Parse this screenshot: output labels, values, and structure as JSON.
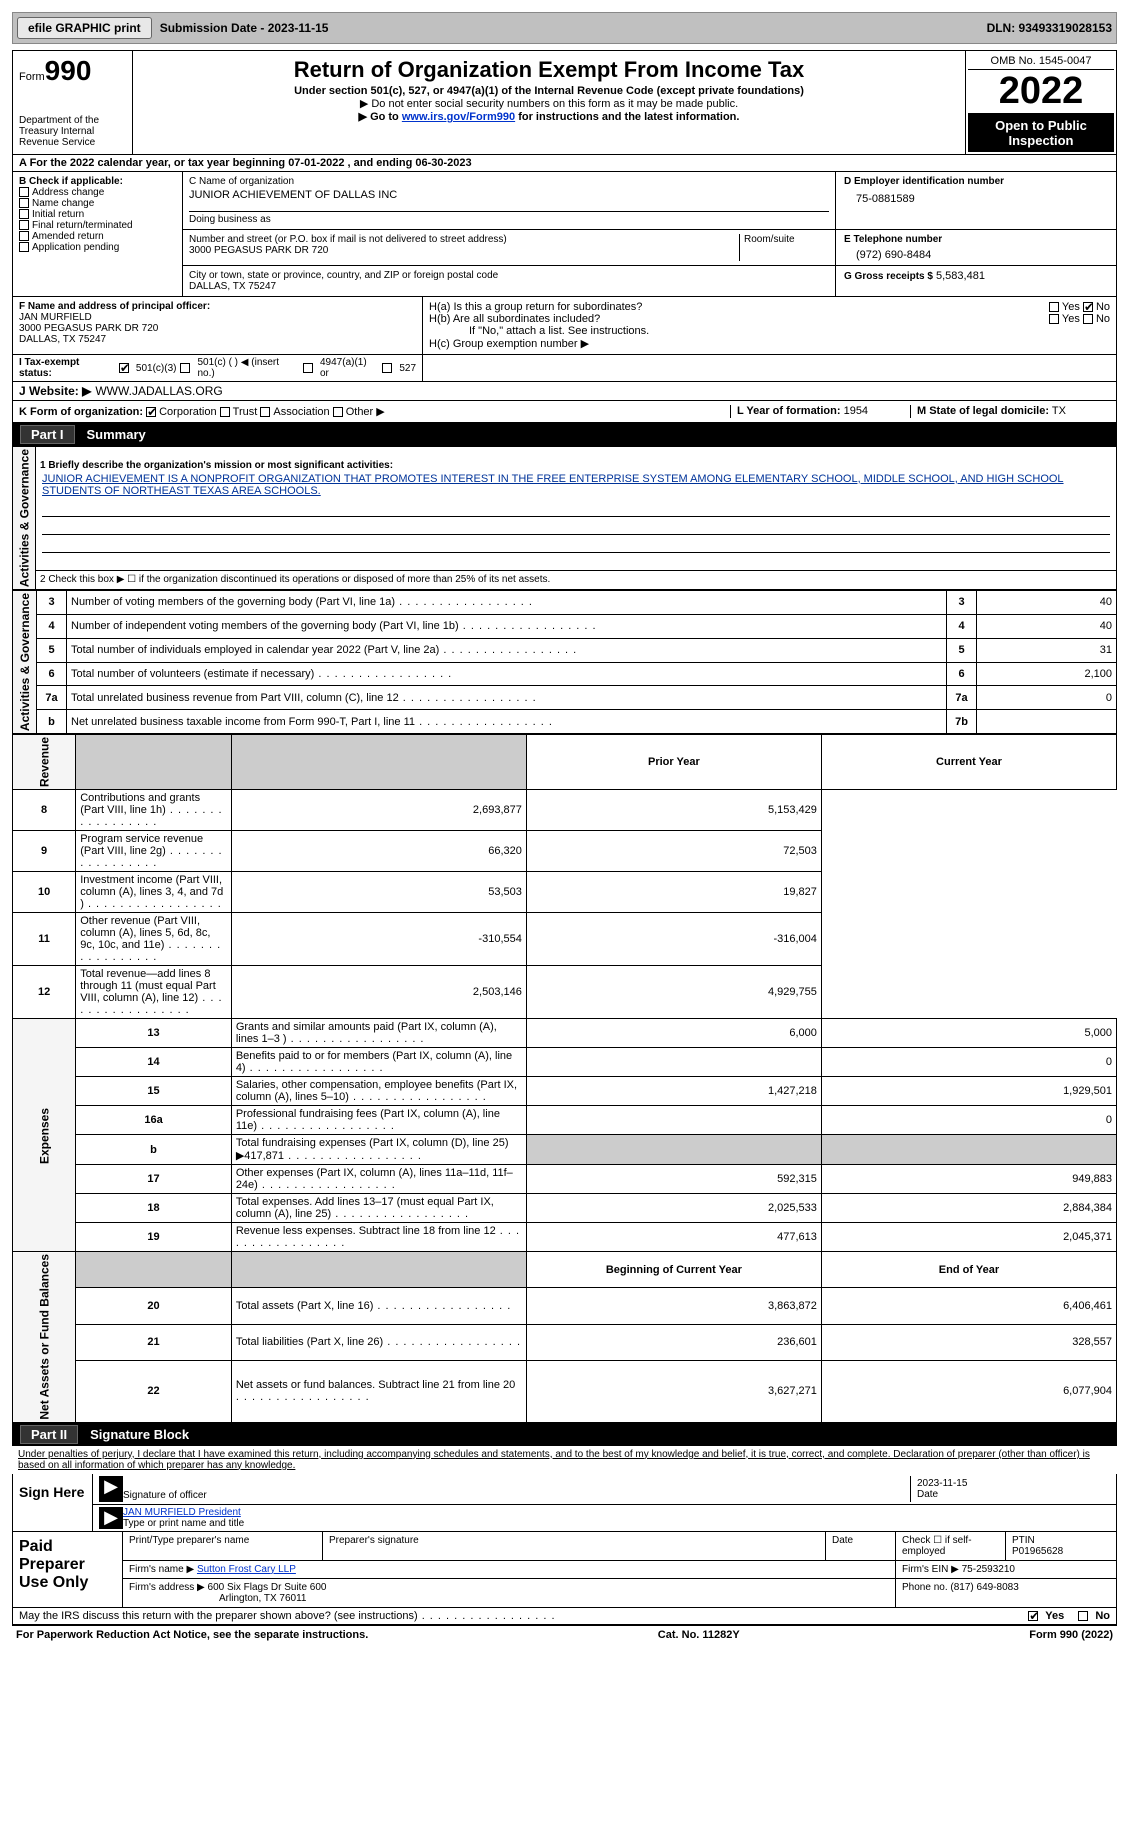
{
  "topbar": {
    "efile": "efile GRAPHIC print",
    "submission": "Submission Date - 2023-11-15",
    "dln": "DLN: 93493319028153"
  },
  "header": {
    "form_label": "Form",
    "form_no": "990",
    "dept": "Department of the Treasury\nInternal Revenue Service",
    "title": "Return of Organization Exempt From Income Tax",
    "sub1": "Under section 501(c), 527, or 4947(a)(1) of the Internal Revenue Code (except private foundations)",
    "sub2": "▶ Do not enter social security numbers on this form as it may be made public.",
    "sub3_pre": "▶ Go to ",
    "sub3_link": "www.irs.gov/Form990",
    "sub3_post": " for instructions and the latest information.",
    "omb": "OMB No. 1545-0047",
    "year": "2022",
    "open": "Open to Public Inspection"
  },
  "section_a": "A For the 2022 calendar year, or tax year beginning 07-01-2022   , and ending 06-30-2023",
  "section_b": {
    "intro": "B Check if applicable:",
    "items": [
      "Address change",
      "Name change",
      "Initial return",
      "Final return/terminated",
      "Amended return",
      "Application pending"
    ]
  },
  "section_c": {
    "label1": "C Name of organization",
    "org": "JUNIOR ACHIEVEMENT OF DALLAS INC",
    "dba": "Doing business as",
    "label2": "Number and street (or P.O. box if mail is not delivered to street address)",
    "street": "3000 PEGASUS PARK DR 720",
    "room": "Room/suite",
    "label3": "City or town, state or province, country, and ZIP or foreign postal code",
    "city": "DALLAS, TX  75247"
  },
  "section_d": {
    "label": "D Employer identification number",
    "val": "75-0881589"
  },
  "section_e": {
    "label": "E Telephone number",
    "val": "(972) 690-8484"
  },
  "section_g": {
    "label": "G Gross receipts $",
    "val": "5,583,481"
  },
  "section_f": {
    "label": "F Name and address of principal officer:",
    "name": "JAN MURFIELD",
    "addr1": "3000 PEGASUS PARK DR 720",
    "addr2": "DALLAS, TX  75247"
  },
  "section_h": {
    "ha": "H(a)  Is this a group return for subordinates?",
    "hb": "H(b)  Are all subordinates included?",
    "hb_note": "If \"No,\" attach a list. See instructions.",
    "hc": "H(c)  Group exemption number ▶"
  },
  "tax_status": {
    "label": "I   Tax-exempt status:",
    "opt1": "501(c)(3)",
    "opt2": "501(c) (  ) ◀ (insert no.)",
    "opt3": "4947(a)(1) or",
    "opt4": "527"
  },
  "website": {
    "label": "J   Website: ▶",
    "val": "WWW.JADALLAS.ORG"
  },
  "section_k": {
    "label": "K Form of organization:",
    "opts": [
      "Corporation",
      "Trust",
      "Association",
      "Other ▶"
    ]
  },
  "section_l": {
    "label": "L Year of formation:",
    "val": "1954"
  },
  "section_m": {
    "label": "M State of legal domicile:",
    "val": "TX"
  },
  "part1": {
    "tab": "Part I",
    "title": "Summary",
    "l1_label": "1   Briefly describe the organization's mission or most significant activities:",
    "l1_text": "JUNIOR ACHIEVEMENT IS A NONPROFIT ORGANIZATION THAT PROMOTES INTEREST IN THE FREE ENTERPRISE SYSTEM AMONG ELEMENTARY SCHOOL, MIDDLE SCHOOL, AND HIGH SCHOOL STUDENTS OF NORTHEAST TEXAS AREA SCHOOLS.",
    "l2": "2   Check this box ▶ ☐ if the organization discontinued its operations or disposed of more than 25% of its net assets.",
    "groups": {
      "activities": "Activities & Governance",
      "revenue": "Revenue",
      "expenses": "Expenses",
      "netassets": "Net Assets or Fund Balances"
    },
    "lines_single": [
      {
        "n": "3",
        "d": "Number of voting members of the governing body (Part VI, line 1a)",
        "box": "3",
        "v": "40"
      },
      {
        "n": "4",
        "d": "Number of independent voting members of the governing body (Part VI, line 1b)",
        "box": "4",
        "v": "40"
      },
      {
        "n": "5",
        "d": "Total number of individuals employed in calendar year 2022 (Part V, line 2a)",
        "box": "5",
        "v": "31"
      },
      {
        "n": "6",
        "d": "Total number of volunteers (estimate if necessary)",
        "box": "6",
        "v": "2,100"
      },
      {
        "n": "7a",
        "d": "Total unrelated business revenue from Part VIII, column (C), line 12",
        "box": "7a",
        "v": "0"
      },
      {
        "n": "b",
        "d": "Net unrelated business taxable income from Form 990-T, Part I, line 11",
        "box": "7b",
        "v": ""
      }
    ],
    "hdr_prior": "Prior Year",
    "hdr_curr": "Current Year",
    "lines_rev": [
      {
        "n": "8",
        "d": "Contributions and grants (Part VIII, line 1h)",
        "p": "2,693,877",
        "c": "5,153,429"
      },
      {
        "n": "9",
        "d": "Program service revenue (Part VIII, line 2g)",
        "p": "66,320",
        "c": "72,503"
      },
      {
        "n": "10",
        "d": "Investment income (Part VIII, column (A), lines 3, 4, and 7d )",
        "p": "53,503",
        "c": "19,827"
      },
      {
        "n": "11",
        "d": "Other revenue (Part VIII, column (A), lines 5, 6d, 8c, 9c, 10c, and 11e)",
        "p": "-310,554",
        "c": "-316,004"
      },
      {
        "n": "12",
        "d": "Total revenue—add lines 8 through 11 (must equal Part VIII, column (A), line 12)",
        "p": "2,503,146",
        "c": "4,929,755"
      }
    ],
    "lines_exp": [
      {
        "n": "13",
        "d": "Grants and similar amounts paid (Part IX, column (A), lines 1–3 )",
        "p": "6,000",
        "c": "5,000"
      },
      {
        "n": "14",
        "d": "Benefits paid to or for members (Part IX, column (A), line 4)",
        "p": "",
        "c": "0"
      },
      {
        "n": "15",
        "d": "Salaries, other compensation, employee benefits (Part IX, column (A), lines 5–10)",
        "p": "1,427,218",
        "c": "1,929,501"
      },
      {
        "n": "16a",
        "d": "Professional fundraising fees (Part IX, column (A), line 11e)",
        "p": "",
        "c": "0"
      },
      {
        "n": "b",
        "d": "Total fundraising expenses (Part IX, column (D), line 25) ▶417,871",
        "p": "shade",
        "c": "shade"
      },
      {
        "n": "17",
        "d": "Other expenses (Part IX, column (A), lines 11a–11d, 11f–24e)",
        "p": "592,315",
        "c": "949,883"
      },
      {
        "n": "18",
        "d": "Total expenses. Add lines 13–17 (must equal Part IX, column (A), line 25)",
        "p": "2,025,533",
        "c": "2,884,384"
      },
      {
        "n": "19",
        "d": "Revenue less expenses. Subtract line 18 from line 12",
        "p": "477,613",
        "c": "2,045,371"
      }
    ],
    "hdr_beg": "Beginning of Current Year",
    "hdr_end": "End of Year",
    "lines_net": [
      {
        "n": "20",
        "d": "Total assets (Part X, line 16)",
        "p": "3,863,872",
        "c": "6,406,461"
      },
      {
        "n": "21",
        "d": "Total liabilities (Part X, line 26)",
        "p": "236,601",
        "c": "328,557"
      },
      {
        "n": "22",
        "d": "Net assets or fund balances. Subtract line 21 from line 20",
        "p": "3,627,271",
        "c": "6,077,904"
      }
    ]
  },
  "part2": {
    "tab": "Part II",
    "title": "Signature Block",
    "decl": "Under penalties of perjury, I declare that I have examined this return, including accompanying schedules and statements, and to the best of my knowledge and belief, it is true, correct, and complete. Declaration of preparer (other than officer) is based on all information of which preparer has any knowledge.",
    "sign_here": "Sign Here",
    "sig_officer": "Signature of officer",
    "sig_date": "2023-11-15",
    "date_lbl": "Date",
    "name_title": "JAN MURFIELD  President",
    "type_lbl": "Type or print name and title",
    "paid_prep": "Paid Preparer Use Only",
    "prep_name_lbl": "Print/Type preparer's name",
    "prep_sig_lbl": "Preparer's signature",
    "prep_date_lbl": "Date",
    "check_self": "Check ☐ if self-employed",
    "ptin_lbl": "PTIN",
    "ptin": "P01965628",
    "firm_name_lbl": "Firm's name    ▶",
    "firm_name": "Sutton Frost Cary LLP",
    "firm_ein_lbl": "Firm's EIN ▶",
    "firm_ein": "75-2593210",
    "firm_addr_lbl": "Firm's address ▶",
    "firm_addr": "600 Six Flags Dr Suite 600",
    "firm_addr2": "Arlington, TX  76011",
    "phone_lbl": "Phone no.",
    "phone": "(817) 649-8083",
    "may_irs": "May the IRS discuss this return with the preparer shown above? (see instructions)",
    "yes": "Yes",
    "no": "No"
  },
  "footer": {
    "left": "For Paperwork Reduction Act Notice, see the separate instructions.",
    "mid": "Cat. No. 11282Y",
    "right": "Form 990 (2022)"
  },
  "colors": {
    "link": "#0033cc",
    "shade": "#cccccc"
  }
}
